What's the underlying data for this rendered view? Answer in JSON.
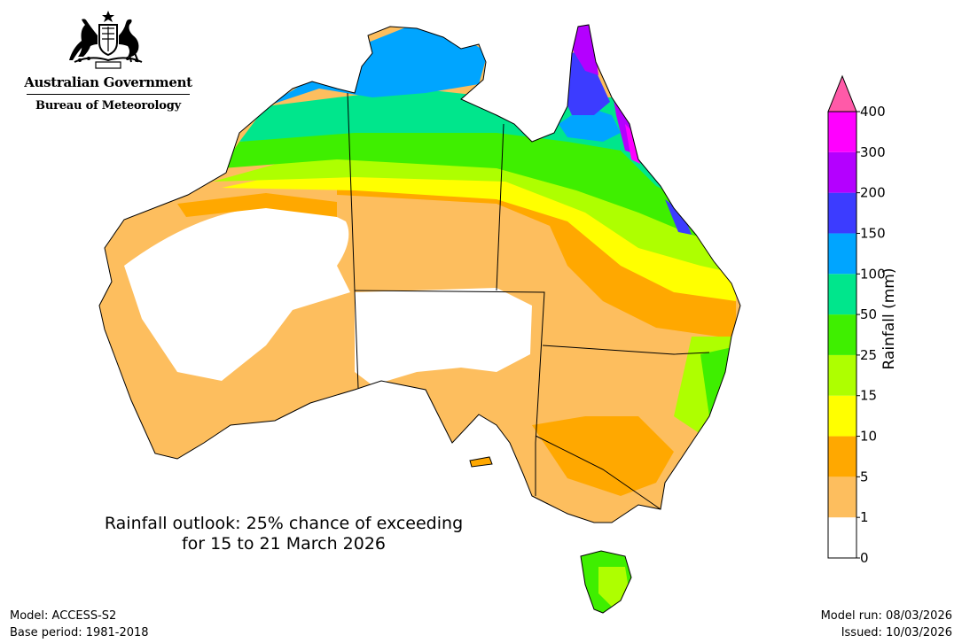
{
  "header": {
    "government": "Australian Government",
    "agency": "Bureau of Meteorology",
    "crest_icon": "coat-of-arms-icon"
  },
  "map": {
    "title_line1": "Rainfall outlook: 25% chance of exceeding",
    "title_line2": "for 15 to 21 March 2026",
    "land_fill_default": "#ffffff",
    "border_color": "#000000"
  },
  "legend": {
    "label": "Rainfall (mm)",
    "ticks": [
      "0",
      "1",
      "5",
      "10",
      "15",
      "25",
      "50",
      "100",
      "150",
      "200",
      "300",
      "400"
    ],
    "colors": [
      "#ffffff",
      "#fdbe5e",
      "#ffa800",
      "#ffff00",
      "#aeff00",
      "#3fef00",
      "#00e68c",
      "#00a5ff",
      "#3c3cff",
      "#b400ff",
      "#ff00ff"
    ],
    "extend_color": "#ff5aa8"
  },
  "footer": {
    "model": "Model: ACCESS-S2",
    "base_period": "Base period: 1981-2018",
    "model_run": "Model run: 08/03/2026",
    "issued": "Issued: 10/03/2026"
  }
}
